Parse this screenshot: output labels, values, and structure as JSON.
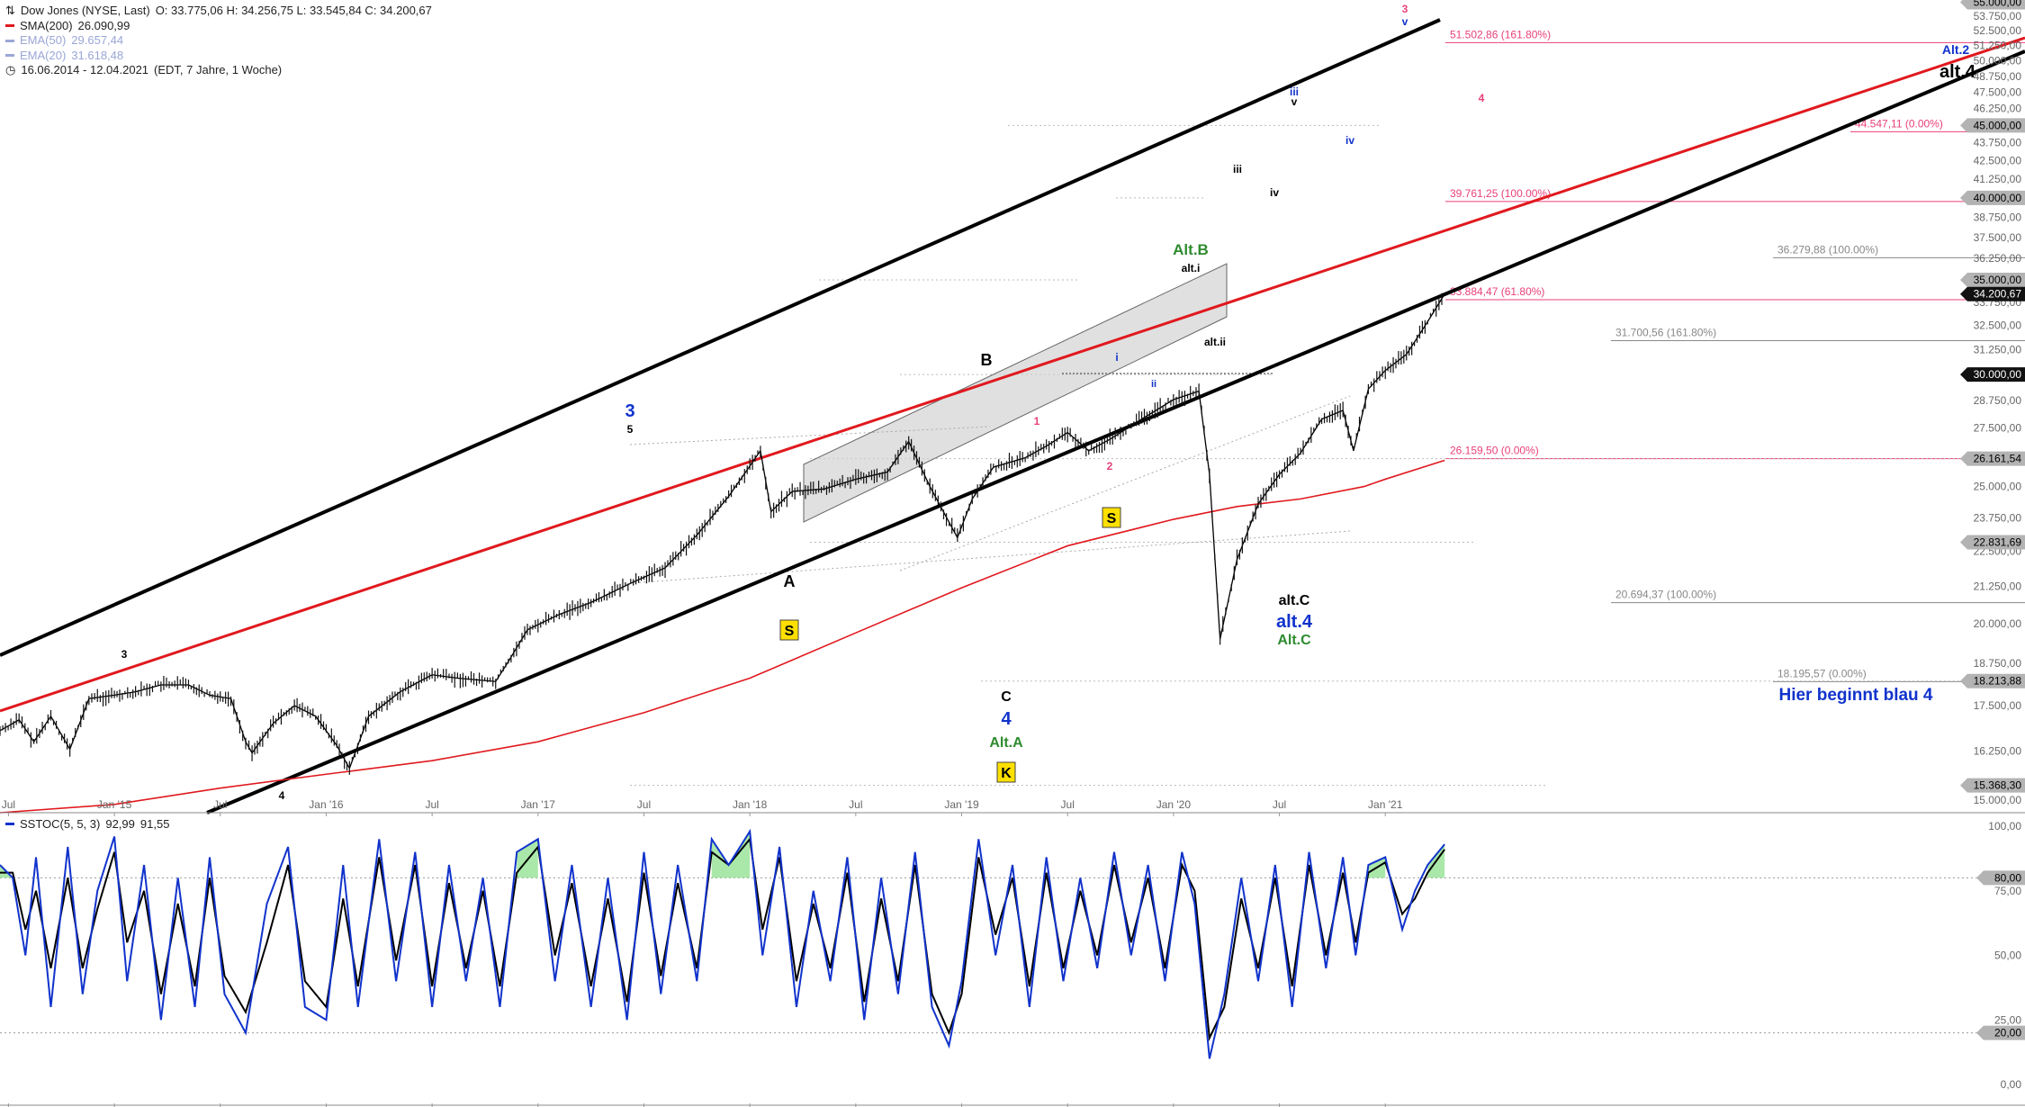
{
  "legend": {
    "title": "Dow Jones (NYSE, Last)",
    "ohlc": "O: 33.775,06  H: 34.256,75  L: 33.545,84  C: 34.200,67",
    "sma200": {
      "label": "SMA(200)",
      "value": "26.090,99",
      "color": "#e0191e"
    },
    "ema50": {
      "label": "EMA(50)",
      "value": "29.657,44",
      "color": "#9aa6d6"
    },
    "ema20": {
      "label": "EMA(20)",
      "value": "31.618,48",
      "color": "#9aa6d6"
    },
    "range": "16.06.2014 - 12.04.2021",
    "range_note": "(EDT, 7 Jahre, 1 Woche)"
  },
  "stoch_legend": {
    "label": "SSTOC(5, 5, 3)",
    "k_value": "92,99",
    "d_value": "91,55"
  },
  "chart_data": [
    {
      "type": "line",
      "title": "Dow Jones (NYSE, Last)",
      "x_axis_ticks": [
        "Jul",
        "Jan '15",
        "Jul",
        "Jan '16",
        "Jul",
        "Jan '17",
        "Jul",
        "Jan '18",
        "Jul",
        "Jan '19",
        "Jul",
        "Jan '20",
        "Jul",
        "Jan '21"
      ],
      "x_tick_dates": [
        2014.5,
        2015.0,
        2015.5,
        2016.0,
        2016.5,
        2017.0,
        2017.5,
        2018.0,
        2018.5,
        2019.0,
        2019.5,
        2020.0,
        2020.5,
        2021.0
      ],
      "x_range": [
        2014.46,
        2024.02
      ],
      "y_axis_ticks": [
        15000,
        16250,
        17500,
        18750,
        20000,
        21250,
        22500,
        23750,
        25000,
        26250,
        27500,
        28750,
        30000,
        31250,
        32500,
        33750,
        35000,
        36250,
        37500,
        38750,
        40000,
        41250,
        42500,
        43750,
        45000,
        46250,
        47500,
        48750,
        50000,
        51250,
        52500,
        53750,
        55000
      ],
      "y_tick_labels": [
        "15.000,00",
        "16.250,00",
        "17.500,00",
        "18.750,00",
        "20.000,00",
        "21.250,00",
        "22.500,00",
        "23.750,00",
        "25.000,00",
        "26.250,00",
        "27.500,00",
        "28.750,00",
        "30.000,00",
        "31.250,00",
        "32.500,00",
        "33.750,00",
        "35.000,00",
        "36.250,00",
        "37.500,00",
        "38.750,00",
        "40.000,00",
        "41.250,00",
        "42.500,00",
        "43.750,00",
        "45.000,00",
        "46.250,00",
        "47.500,00",
        "48.750,00",
        "50.000,00",
        "51.250,00",
        "52.500,00",
        "53.750,00",
        "55.000,00"
      ],
      "y_scale": "log",
      "ylim": [
        14700,
        55200
      ],
      "series": [
        {
          "name": "Dow Jones (NYSE, Last)",
          "color": "#000000",
          "x": [
            2014.46,
            2014.55,
            2014.62,
            2014.7,
            2014.79,
            2014.88,
            2015.0,
            2015.1,
            2015.22,
            2015.35,
            2015.45,
            2015.55,
            2015.62,
            2015.65,
            2015.75,
            2015.85,
            2015.95,
            2016.05,
            2016.11,
            2016.2,
            2016.35,
            2016.5,
            2016.62,
            2016.8,
            2016.86,
            2016.95,
            2017.1,
            2017.25,
            2017.45,
            2017.6,
            2017.75,
            2017.9,
            2018.05,
            2018.1,
            2018.2,
            2018.35,
            2018.5,
            2018.65,
            2018.75,
            2018.85,
            2018.98,
            2019.05,
            2019.15,
            2019.3,
            2019.4,
            2019.5,
            2019.6,
            2019.7,
            2019.85,
            2020.0,
            2020.12,
            2020.17,
            2020.22,
            2020.3,
            2020.4,
            2020.5,
            2020.6,
            2020.7,
            2020.8,
            2020.85,
            2020.92,
            2021.0,
            2021.1,
            2021.2,
            2021.28
          ],
          "y": [
            16800,
            17100,
            16500,
            17200,
            16300,
            17700,
            17800,
            17900,
            18100,
            18100,
            17800,
            17700,
            16500,
            16200,
            17000,
            17500,
            17200,
            16400,
            15800,
            17200,
            17900,
            18400,
            18300,
            18200,
            18800,
            19800,
            20300,
            20700,
            21400,
            21900,
            23100,
            24600,
            26500,
            24000,
            24800,
            24900,
            25300,
            25600,
            26900,
            25000,
            23000,
            24500,
            25800,
            26200,
            26700,
            27300,
            26500,
            27000,
            27900,
            28800,
            29200,
            25500,
            19500,
            22200,
            24300,
            25500,
            26400,
            27900,
            28300,
            26500,
            29300,
            30200,
            31000,
            32700,
            34200
          ]
        },
        {
          "name": "SMA(200)",
          "color": "#e0191e",
          "x": [
            2014.46,
            2015.0,
            2015.5,
            2016.0,
            2016.5,
            2017.0,
            2017.5,
            2018.0,
            2018.5,
            2019.0,
            2019.5,
            2020.0,
            2020.3,
            2020.6,
            2020.9,
            2021.0,
            2021.28
          ],
          "y": [
            14700,
            14900,
            15300,
            15650,
            16000,
            16500,
            17300,
            18300,
            19700,
            21200,
            22700,
            23700,
            24200,
            24500,
            25000,
            25300,
            26090
          ]
        }
      ],
      "annotations": {
        "price_boxes": [
          "55.000,00",
          "45.000,00",
          "40.000,00",
          "35.000,00",
          "34.200,67",
          "30.000,00",
          "26.161,54",
          "22.831,69",
          "18.213,88",
          "15.368,30"
        ],
        "fib_labels": [
          "51.502,86 (161.80%)",
          "44.547,11 (0.00%)",
          "39.761,25 (100.00%)",
          "36.279,88 (100.00%)",
          "33.884,47 (61.80%)",
          "31.700,56 (161.80%)",
          "26.159,50 (0.00%)",
          "20.694,37 (100.00%)",
          "18.195,57 (0.00%)"
        ],
        "wave_labels": [
          "3",
          "5",
          "3",
          "4",
          "A",
          "B",
          "C",
          "4",
          "Alt.A",
          "1",
          "2",
          "i",
          "ii",
          "iii",
          "iv",
          "v",
          "iii",
          "iv",
          "v",
          "3",
          "4",
          "Alt.2",
          "alt.4",
          "Alt.B",
          "alt.i",
          "alt.ii",
          "alt.C",
          "alt.4",
          "Alt.C"
        ],
        "badges": [
          "S",
          "S",
          "K"
        ],
        "note": "Hier beginnt blau 4"
      }
    },
    {
      "type": "line",
      "title": "SSTOC(5, 5, 3)",
      "y_axis_ticks": [
        0,
        20,
        25,
        50,
        75,
        80,
        100
      ],
      "y_tick_labels": [
        "0,00",
        "20,00",
        "25,00",
        "50,00",
        "75,00",
        "80,00",
        "100,00"
      ],
      "ylim": [
        0,
        100
      ],
      "x_range": [
        2014.46,
        2024.02
      ],
      "series": [
        {
          "name": "%K",
          "value": "92,99",
          "color": "#1133cc",
          "x": [
            2014.46,
            2014.52,
            2014.58,
            2014.63,
            2014.7,
            2014.78,
            2014.85,
            2014.92,
            2015.0,
            2015.06,
            2015.14,
            2015.22,
            2015.3,
            2015.38,
            2015.45,
            2015.52,
            2015.62,
            2015.72,
            2015.82,
            2015.9,
            2016.0,
            2016.08,
            2016.15,
            2016.25,
            2016.33,
            2016.42,
            2016.5,
            2016.58,
            2016.66,
            2016.74,
            2016.82,
            2016.9,
            2017.0,
            2017.08,
            2017.16,
            2017.25,
            2017.33,
            2017.42,
            2017.5,
            2017.58,
            2017.66,
            2017.75,
            2017.82,
            2017.9,
            2018.0,
            2018.06,
            2018.14,
            2018.22,
            2018.3,
            2018.38,
            2018.46,
            2018.54,
            2018.62,
            2018.7,
            2018.78,
            2018.86,
            2018.94,
            2019.0,
            2019.08,
            2019.16,
            2019.24,
            2019.32,
            2019.4,
            2019.48,
            2019.56,
            2019.64,
            2019.72,
            2019.8,
            2019.88,
            2019.96,
            2020.04,
            2020.1,
            2020.17,
            2020.24,
            2020.32,
            2020.4,
            2020.48,
            2020.56,
            2020.64,
            2020.72,
            2020.8,
            2020.86,
            2020.92,
            2021.0,
            2021.08,
            2021.14,
            2021.2,
            2021.28
          ],
          "y": [
            85,
            80,
            50,
            88,
            30,
            92,
            35,
            75,
            96,
            40,
            85,
            25,
            80,
            30,
            88,
            35,
            20,
            70,
            92,
            30,
            25,
            85,
            30,
            95,
            40,
            90,
            30,
            85,
            40,
            80,
            30,
            90,
            95,
            40,
            85,
            30,
            80,
            25,
            90,
            35,
            85,
            40,
            95,
            85,
            98,
            50,
            92,
            30,
            75,
            40,
            88,
            25,
            80,
            35,
            90,
            30,
            15,
            40,
            95,
            50,
            85,
            30,
            88,
            40,
            80,
            45,
            90,
            50,
            85,
            40,
            90,
            70,
            10,
            35,
            80,
            40,
            85,
            30,
            90,
            45,
            88,
            50,
            85,
            88,
            60,
            75,
            85,
            93
          ]
        },
        {
          "name": "%D",
          "value": "91,55",
          "color": "#000000",
          "x": [
            2014.46,
            2014.52,
            2014.58,
            2014.63,
            2014.7,
            2014.78,
            2014.85,
            2014.92,
            2015.0,
            2015.06,
            2015.14,
            2015.22,
            2015.3,
            2015.38,
            2015.45,
            2015.52,
            2015.62,
            2015.72,
            2015.82,
            2015.9,
            2016.0,
            2016.08,
            2016.15,
            2016.25,
            2016.33,
            2016.42,
            2016.5,
            2016.58,
            2016.66,
            2016.74,
            2016.82,
            2016.9,
            2017.0,
            2017.08,
            2017.16,
            2017.25,
            2017.33,
            2017.42,
            2017.5,
            2017.58,
            2017.66,
            2017.75,
            2017.82,
            2017.9,
            2018.0,
            2018.06,
            2018.14,
            2018.22,
            2018.3,
            2018.38,
            2018.46,
            2018.54,
            2018.62,
            2018.7,
            2018.78,
            2018.86,
            2018.94,
            2019.0,
            2019.08,
            2019.16,
            2019.24,
            2019.32,
            2019.4,
            2019.48,
            2019.56,
            2019.64,
            2019.72,
            2019.8,
            2019.88,
            2019.96,
            2020.04,
            2020.1,
            2020.17,
            2020.24,
            2020.32,
            2020.4,
            2020.48,
            2020.56,
            2020.64,
            2020.72,
            2020.8,
            2020.86,
            2020.92,
            2021.0,
            2021.08,
            2021.14,
            2021.2,
            2021.28
          ],
          "y": [
            82,
            82,
            60,
            75,
            45,
            80,
            45,
            68,
            90,
            55,
            75,
            35,
            70,
            38,
            80,
            42,
            28,
            55,
            85,
            40,
            30,
            72,
            38,
            88,
            48,
            85,
            38,
            78,
            45,
            75,
            38,
            82,
            92,
            50,
            78,
            38,
            72,
            32,
            82,
            42,
            78,
            45,
            90,
            85,
            95,
            60,
            88,
            40,
            70,
            45,
            82,
            32,
            72,
            40,
            85,
            35,
            20,
            35,
            88,
            58,
            80,
            38,
            82,
            45,
            75,
            50,
            85,
            55,
            80,
            45,
            85,
            75,
            18,
            30,
            72,
            45,
            80,
            38,
            85,
            50,
            82,
            55,
            82,
            86,
            66,
            72,
            82,
            91
          ]
        }
      ]
    }
  ]
}
